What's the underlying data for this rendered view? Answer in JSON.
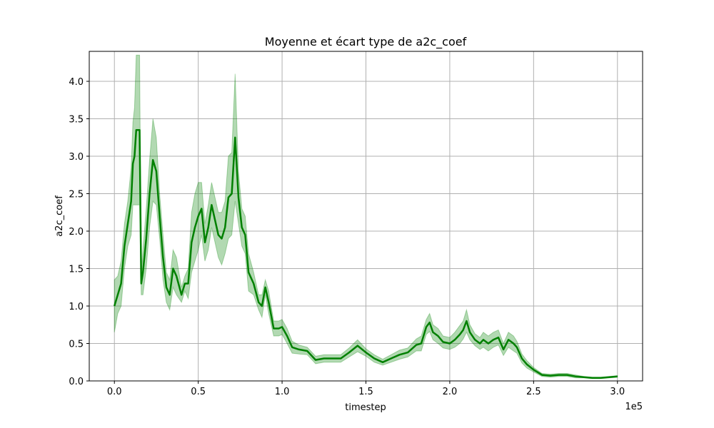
{
  "chart_data": {
    "type": "line",
    "title": "Moyenne et écart type de a2c_coef",
    "xlabel": "timestep",
    "ylabel": "a2c_coef",
    "x_offset_label": "1e5",
    "xlim": [
      -15000,
      315000
    ],
    "ylim": [
      0,
      4.4
    ],
    "grid": true,
    "x_ticks": [
      0,
      50000,
      100000,
      150000,
      200000,
      250000,
      300000
    ],
    "x_tick_labels": [
      "0.0",
      "0.5",
      "1.0",
      "1.5",
      "2.0",
      "2.5",
      "3.0"
    ],
    "y_ticks": [
      0,
      0.5,
      1.0,
      1.5,
      2.0,
      2.5,
      3.0,
      3.5,
      4.0
    ],
    "y_tick_labels": [
      "0.0",
      "0.5",
      "1.0",
      "1.5",
      "2.0",
      "2.5",
      "3.0",
      "3.5",
      "4.0"
    ],
    "series": [
      {
        "color": "#008000",
        "band_color": "#008000",
        "x": [
          0,
          2000,
          4000,
          6000,
          8000,
          10000,
          11000,
          12000,
          13000,
          15000,
          16000,
          17000,
          19000,
          21000,
          23000,
          25000,
          27000,
          29000,
          31000,
          33000,
          35000,
          37000,
          40000,
          42000,
          44000,
          46000,
          48000,
          50000,
          52000,
          54000,
          56000,
          58000,
          60000,
          62000,
          64000,
          66000,
          68000,
          70000,
          72000,
          74000,
          76000,
          78000,
          80000,
          83000,
          86000,
          88000,
          90000,
          92000,
          95000,
          98000,
          100000,
          103000,
          106000,
          110000,
          115000,
          120000,
          125000,
          130000,
          135000,
          140000,
          145000,
          150000,
          155000,
          160000,
          165000,
          170000,
          175000,
          180000,
          183000,
          186000,
          188000,
          190000,
          193000,
          196000,
          200000,
          203000,
          206000,
          208000,
          210000,
          212000,
          215000,
          218000,
          220000,
          223000,
          226000,
          229000,
          232000,
          235000,
          238000,
          240000,
          243000,
          246000,
          250000,
          255000,
          260000,
          265000,
          270000,
          275000,
          280000,
          285000,
          290000,
          295000,
          300000
        ],
        "mean": [
          1.0,
          1.15,
          1.3,
          1.8,
          2.1,
          2.4,
          2.9,
          3.0,
          3.35,
          3.35,
          1.3,
          1.45,
          1.9,
          2.5,
          2.95,
          2.8,
          2.2,
          1.65,
          1.25,
          1.15,
          1.5,
          1.4,
          1.15,
          1.3,
          1.3,
          1.85,
          2.05,
          2.2,
          2.3,
          1.85,
          2.05,
          2.35,
          2.15,
          1.95,
          1.9,
          2.05,
          2.45,
          2.5,
          3.25,
          2.45,
          2.05,
          1.95,
          1.45,
          1.3,
          1.05,
          1.0,
          1.25,
          1.05,
          0.7,
          0.7,
          0.72,
          0.6,
          0.45,
          0.42,
          0.4,
          0.28,
          0.3,
          0.3,
          0.3,
          0.38,
          0.47,
          0.38,
          0.3,
          0.25,
          0.3,
          0.35,
          0.38,
          0.48,
          0.5,
          0.72,
          0.78,
          0.65,
          0.6,
          0.52,
          0.5,
          0.55,
          0.62,
          0.68,
          0.8,
          0.65,
          0.55,
          0.5,
          0.55,
          0.5,
          0.55,
          0.58,
          0.42,
          0.55,
          0.5,
          0.45,
          0.3,
          0.22,
          0.15,
          0.08,
          0.07,
          0.08,
          0.08,
          0.06,
          0.05,
          0.04,
          0.04,
          0.05,
          0.06
        ],
        "std": [
          0.35,
          0.25,
          0.3,
          0.3,
          0.3,
          0.45,
          0.55,
          0.65,
          1.0,
          1.0,
          0.15,
          0.3,
          0.4,
          0.45,
          0.55,
          0.45,
          0.3,
          0.3,
          0.2,
          0.2,
          0.25,
          0.25,
          0.1,
          0.1,
          0.2,
          0.4,
          0.45,
          0.45,
          0.35,
          0.25,
          0.3,
          0.3,
          0.3,
          0.3,
          0.35,
          0.35,
          0.55,
          0.55,
          0.85,
          0.35,
          0.25,
          0.25,
          0.25,
          0.15,
          0.1,
          0.15,
          0.1,
          0.15,
          0.1,
          0.1,
          0.1,
          0.1,
          0.08,
          0.06,
          0.05,
          0.05,
          0.05,
          0.05,
          0.05,
          0.06,
          0.08,
          0.05,
          0.05,
          0.04,
          0.05,
          0.06,
          0.06,
          0.08,
          0.1,
          0.1,
          0.12,
          0.1,
          0.1,
          0.08,
          0.08,
          0.1,
          0.12,
          0.12,
          0.15,
          0.1,
          0.08,
          0.08,
          0.1,
          0.1,
          0.1,
          0.1,
          0.08,
          0.1,
          0.1,
          0.08,
          0.06,
          0.05,
          0.03,
          0.02,
          0.02,
          0.02,
          0.02,
          0.02,
          0.01,
          0.01,
          0.01,
          0.01,
          0.01
        ]
      }
    ]
  }
}
